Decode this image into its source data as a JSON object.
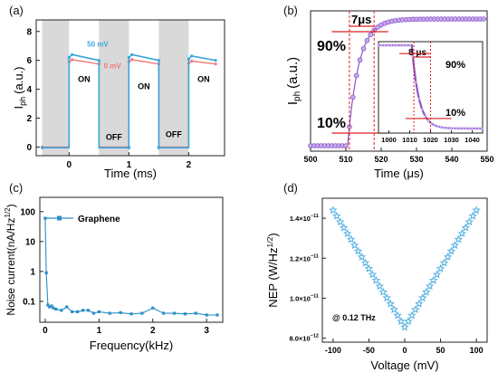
{
  "chart_data": [
    {
      "panel": "(a)",
      "type": "line",
      "xlabel": "Time (ms)",
      "ylabel": "I",
      "ylabel_sub": "ph",
      "ylabel_unit": "(a.u.)",
      "xlim": [
        -0.55,
        2.6
      ],
      "ylim": [
        -0.6,
        8.8
      ],
      "x_ticks": [
        0,
        1,
        2
      ],
      "y_ticks": [
        0,
        2,
        4,
        6,
        8
      ],
      "shaded_intervals": [
        [
          -0.45,
          0
        ],
        [
          0.5,
          1
        ],
        [
          1.5,
          2
        ]
      ],
      "series": [
        {
          "name": "50 mV",
          "color": "#3aa6dd",
          "x": [
            -0.45,
            0,
            0,
            0.05,
            0.5,
            0.5,
            1,
            1,
            1.05,
            1.5,
            1.5,
            2,
            2,
            2.05,
            2.45
          ],
          "y": [
            -0.05,
            -0.05,
            6.2,
            6.4,
            6.0,
            -0.05,
            -0.05,
            6.2,
            6.4,
            6.0,
            -0.05,
            -0.05,
            6.1,
            6.3,
            6.0
          ]
        },
        {
          "name": "0 mV",
          "color": "#f07a7a",
          "x": [
            -0.45,
            0,
            0,
            0.05,
            0.5,
            0.5,
            1,
            1,
            1.05,
            1.5,
            1.5,
            2,
            2,
            2.05,
            2.45
          ],
          "y": [
            0.0,
            0.0,
            5.9,
            6.05,
            5.75,
            0.0,
            0.0,
            5.9,
            6.05,
            5.75,
            0.0,
            0.0,
            5.8,
            5.95,
            5.75
          ]
        }
      ],
      "annotations": [
        {
          "text": "ON",
          "x": 0.25,
          "y": 4.5
        },
        {
          "text": "ON",
          "x": 1.25,
          "y": 4.0
        },
        {
          "text": "ON",
          "x": 2.25,
          "y": 4.5
        },
        {
          "text": "OFF",
          "x": 0.75,
          "y": 0.5
        },
        {
          "text": "OFF",
          "x": 1.75,
          "y": 0.7
        }
      ]
    },
    {
      "panel": "(b)",
      "type": "scatter",
      "xlabel": "Time (μs)",
      "ylabel": "I",
      "ylabel_sub": "ph",
      "ylabel_unit": "(a.u.)",
      "xlim": [
        500,
        550
      ],
      "x_ticks": [
        500,
        510,
        520,
        530,
        540,
        550
      ],
      "rise": {
        "t0": 511,
        "t1": 518,
        "label": "7μs"
      },
      "levels": [
        {
          "text": "90%",
          "value": 0.9
        },
        {
          "text": "10%",
          "value": 0.1
        }
      ],
      "inset": {
        "xlim": [
          995,
          1045
        ],
        "x_ticks": [
          1000,
          1010,
          1020,
          1030,
          1040
        ],
        "fall": {
          "t0": 1012,
          "t1": 1020,
          "label": "8 μs"
        },
        "levels": [
          {
            "text": "90%",
            "value": 0.9
          },
          {
            "text": "10%",
            "value": 0.1
          }
        ]
      }
    },
    {
      "panel": "(c)",
      "type": "line",
      "xlabel": "Frequency(kHz)",
      "ylabel": "Noise current(nA/Hz",
      "ylabel_exp": "1/2",
      "ylabel_close": ")",
      "yscale": "log",
      "xlim": [
        -0.1,
        3.3
      ],
      "ylim": [
        0.02,
        300
      ],
      "x_ticks": [
        0,
        1,
        2,
        3
      ],
      "y_ticks": [
        0.1,
        1,
        10,
        100
      ],
      "y_tick_labels": [
        "0.1",
        "1",
        "10",
        "100"
      ],
      "legend": "Graphene",
      "legend_position": "top-left",
      "series": [
        {
          "name": "Graphene",
          "color": "#2a8fc6",
          "x": [
            0.0,
            0.02,
            0.05,
            0.08,
            0.12,
            0.15,
            0.2,
            0.3,
            0.4,
            0.5,
            0.6,
            0.7,
            0.8,
            0.9,
            1.0,
            1.2,
            1.4,
            1.6,
            1.8,
            2.0,
            2.2,
            2.4,
            2.6,
            2.8,
            3.0,
            3.2
          ],
          "y": [
            60,
            0.9,
            0.075,
            0.065,
            0.07,
            0.06,
            0.055,
            0.05,
            0.065,
            0.045,
            0.045,
            0.05,
            0.05,
            0.04,
            0.045,
            0.04,
            0.042,
            0.038,
            0.04,
            0.06,
            0.04,
            0.04,
            0.038,
            0.04,
            0.035,
            0.035
          ]
        }
      ]
    },
    {
      "panel": "(d)",
      "type": "scatter",
      "xlabel": "Voltage (mV)",
      "ylabel": "NEP (W/Hz",
      "ylabel_exp": "1/2",
      "ylabel_close": ")",
      "xlim": [
        -115,
        115
      ],
      "ylim": [
        7.8e-12,
        1.5e-11
      ],
      "x_ticks": [
        -100,
        -50,
        0,
        50,
        100
      ],
      "y_ticks": [
        8e-12,
        1e-11,
        1.2e-11,
        1.4e-11
      ],
      "y_tick_base": [
        "8.0×10",
        "1.0×10",
        "1.2×10",
        "1.4×10"
      ],
      "y_tick_exp": [
        "−12",
        "−11",
        "−11",
        "−11"
      ],
      "annotation": "@ 0.12 THz",
      "color": "#5bb3e3",
      "minimum": {
        "x": 0,
        "y": 8.55e-12
      },
      "maximum": {
        "x": 100,
        "y": 1.44e-11
      }
    }
  ]
}
